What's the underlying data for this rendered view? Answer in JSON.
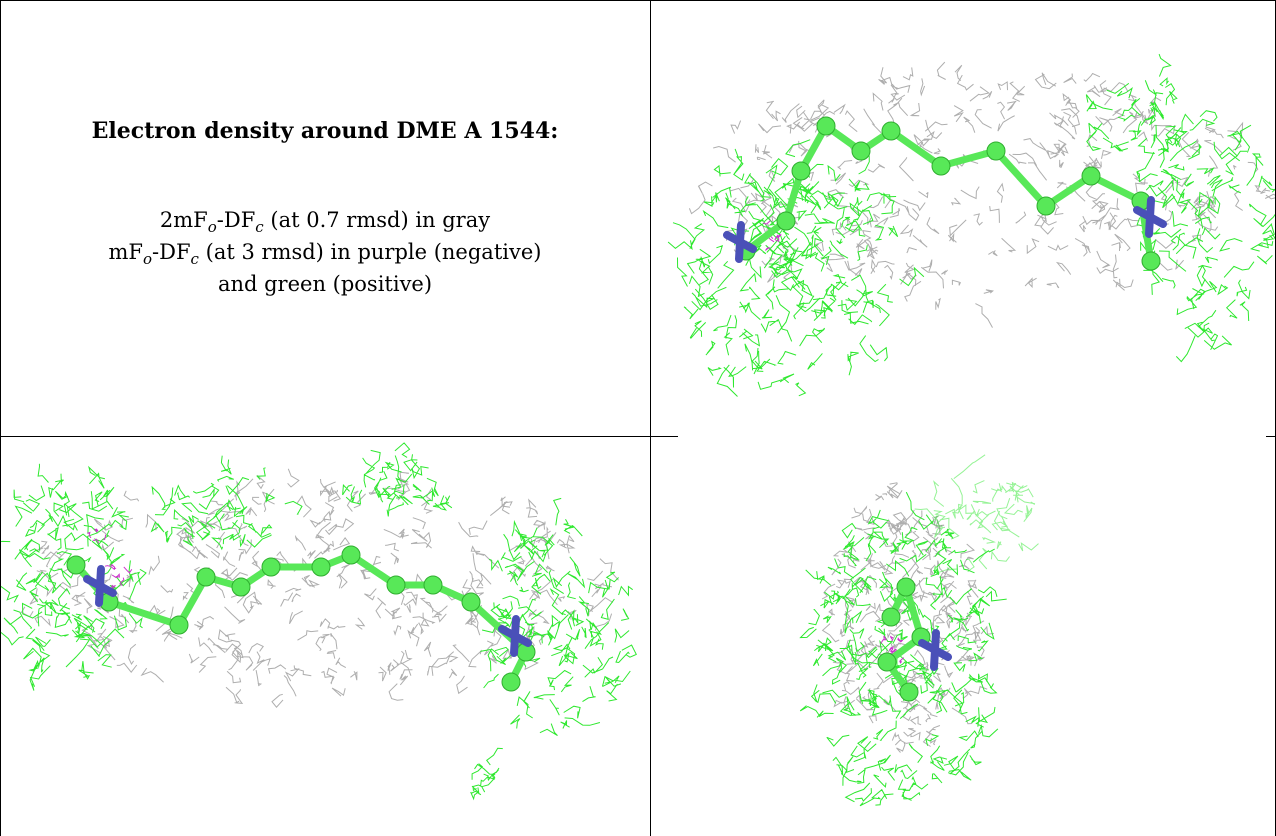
{
  "caption": {
    "title": "Electron density around DME A 1544:",
    "line1": {
      "prefix": "2mF",
      "sub1": "o",
      "mid": "-DF",
      "sub2": "c",
      "suffix": " (at 0.7 rmsd) in gray"
    },
    "line2": {
      "prefix": "mF",
      "sub1": "o",
      "mid": "-DF",
      "sub2": "c",
      "suffix": " (at 3 rmsd) in purple (negative)"
    },
    "line3": "and green (positive)"
  },
  "colors": {
    "gray_mesh": "#9a9a9a",
    "green_mesh": "#2ee82e",
    "green_atom": "#58e858",
    "nitrogen": "#4a50b8",
    "purple_mesh": "#cc33cc"
  },
  "panels": [
    {
      "id": "view-top-right",
      "view": "side"
    },
    {
      "id": "view-bottom-left",
      "view": "side-flipped"
    },
    {
      "id": "view-bottom-right",
      "view": "end-on"
    }
  ]
}
